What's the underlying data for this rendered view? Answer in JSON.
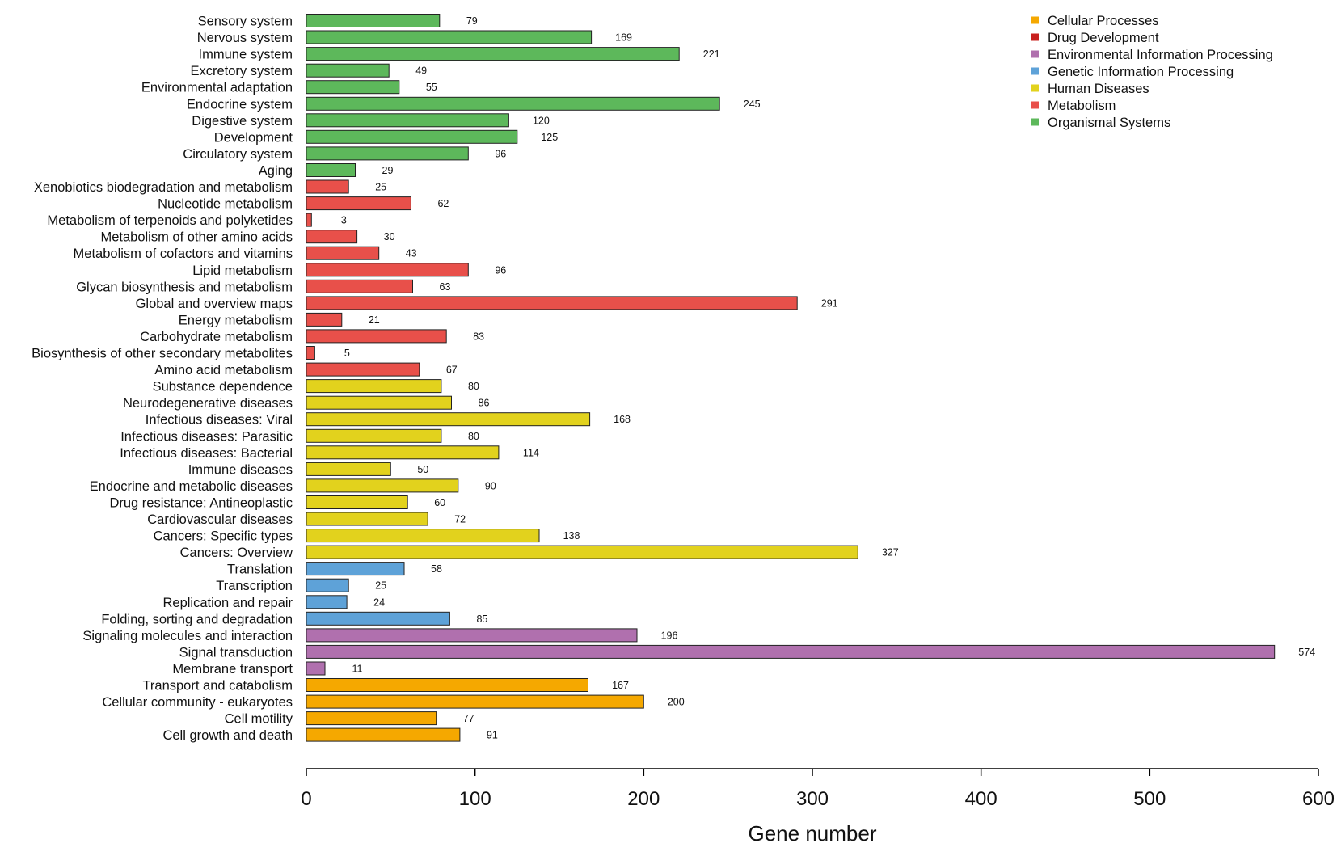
{
  "chart_data": {
    "type": "bar",
    "orientation": "horizontal",
    "title": "",
    "xlabel": "Gene number",
    "ylabel": "",
    "xlim": [
      0,
      600
    ],
    "xticks": [
      0,
      100,
      200,
      300,
      400,
      500,
      600
    ],
    "grid": false,
    "legend_position": "top-right",
    "legend": [
      {
        "name": "Cellular Processes",
        "color": "#F5A800"
      },
      {
        "name": "Drug Development",
        "color": "#C8201E"
      },
      {
        "name": "Environmental Information Processing",
        "color": "#B070AE"
      },
      {
        "name": "Genetic Information Processing",
        "color": "#5EA2D8"
      },
      {
        "name": "Human Diseases",
        "color": "#E2D21D"
      },
      {
        "name": "Metabolism",
        "color": "#E8504A"
      },
      {
        "name": "Organismal Systems",
        "color": "#5DB85B"
      }
    ],
    "categories": [
      {
        "name": "Sensory system",
        "value": 79,
        "group": "Organismal Systems"
      },
      {
        "name": "Nervous system",
        "value": 169,
        "group": "Organismal Systems"
      },
      {
        "name": "Immune system",
        "value": 221,
        "group": "Organismal Systems"
      },
      {
        "name": "Excretory system",
        "value": 49,
        "group": "Organismal Systems"
      },
      {
        "name": "Environmental adaptation",
        "value": 55,
        "group": "Organismal Systems"
      },
      {
        "name": "Endocrine system",
        "value": 245,
        "group": "Organismal Systems"
      },
      {
        "name": "Digestive system",
        "value": 120,
        "group": "Organismal Systems"
      },
      {
        "name": "Development",
        "value": 125,
        "group": "Organismal Systems"
      },
      {
        "name": "Circulatory system",
        "value": 96,
        "group": "Organismal Systems"
      },
      {
        "name": "Aging",
        "value": 29,
        "group": "Organismal Systems"
      },
      {
        "name": "Xenobiotics biodegradation and metabolism",
        "value": 25,
        "group": "Metabolism"
      },
      {
        "name": "Nucleotide metabolism",
        "value": 62,
        "group": "Metabolism"
      },
      {
        "name": "Metabolism of terpenoids and polyketides",
        "value": 3,
        "group": "Metabolism"
      },
      {
        "name": "Metabolism of other amino acids",
        "value": 30,
        "group": "Metabolism"
      },
      {
        "name": "Metabolism of cofactors and vitamins",
        "value": 43,
        "group": "Metabolism"
      },
      {
        "name": "Lipid metabolism",
        "value": 96,
        "group": "Metabolism"
      },
      {
        "name": "Glycan biosynthesis and metabolism",
        "value": 63,
        "group": "Metabolism"
      },
      {
        "name": "Global and overview maps",
        "value": 291,
        "group": "Metabolism"
      },
      {
        "name": "Energy metabolism",
        "value": 21,
        "group": "Metabolism"
      },
      {
        "name": "Carbohydrate metabolism",
        "value": 83,
        "group": "Metabolism"
      },
      {
        "name": "Biosynthesis of other secondary metabolites",
        "value": 5,
        "group": "Metabolism"
      },
      {
        "name": "Amino acid metabolism",
        "value": 67,
        "group": "Metabolism"
      },
      {
        "name": "Substance dependence",
        "value": 80,
        "group": "Human Diseases"
      },
      {
        "name": "Neurodegenerative diseases",
        "value": 86,
        "group": "Human Diseases"
      },
      {
        "name": "Infectious diseases: Viral",
        "value": 168,
        "group": "Human Diseases"
      },
      {
        "name": "Infectious diseases: Parasitic",
        "value": 80,
        "group": "Human Diseases"
      },
      {
        "name": "Infectious diseases: Bacterial",
        "value": 114,
        "group": "Human Diseases"
      },
      {
        "name": "Immune diseases",
        "value": 50,
        "group": "Human Diseases"
      },
      {
        "name": "Endocrine and metabolic diseases",
        "value": 90,
        "group": "Human Diseases"
      },
      {
        "name": "Drug resistance: Antineoplastic",
        "value": 60,
        "group": "Human Diseases"
      },
      {
        "name": "Cardiovascular diseases",
        "value": 72,
        "group": "Human Diseases"
      },
      {
        "name": "Cancers: Specific types",
        "value": 138,
        "group": "Human Diseases"
      },
      {
        "name": "Cancers: Overview",
        "value": 327,
        "group": "Human Diseases"
      },
      {
        "name": "Translation",
        "value": 58,
        "group": "Genetic Information Processing"
      },
      {
        "name": "Transcription",
        "value": 25,
        "group": "Genetic Information Processing"
      },
      {
        "name": "Replication and repair",
        "value": 24,
        "group": "Genetic Information Processing"
      },
      {
        "name": "Folding, sorting and degradation",
        "value": 85,
        "group": "Genetic Information Processing"
      },
      {
        "name": "Signaling molecules and interaction",
        "value": 196,
        "group": "Environmental Information Processing"
      },
      {
        "name": "Signal transduction",
        "value": 574,
        "group": "Environmental Information Processing"
      },
      {
        "name": "Membrane transport",
        "value": 11,
        "group": "Environmental Information Processing"
      },
      {
        "name": "Transport and catabolism",
        "value": 167,
        "group": "Cellular Processes"
      },
      {
        "name": "Cellular community - eukaryotes",
        "value": 200,
        "group": "Cellular Processes"
      },
      {
        "name": "Cell motility",
        "value": 77,
        "group": "Cellular Processes"
      },
      {
        "name": "Cell growth and death",
        "value": 91,
        "group": "Cellular Processes"
      }
    ]
  }
}
